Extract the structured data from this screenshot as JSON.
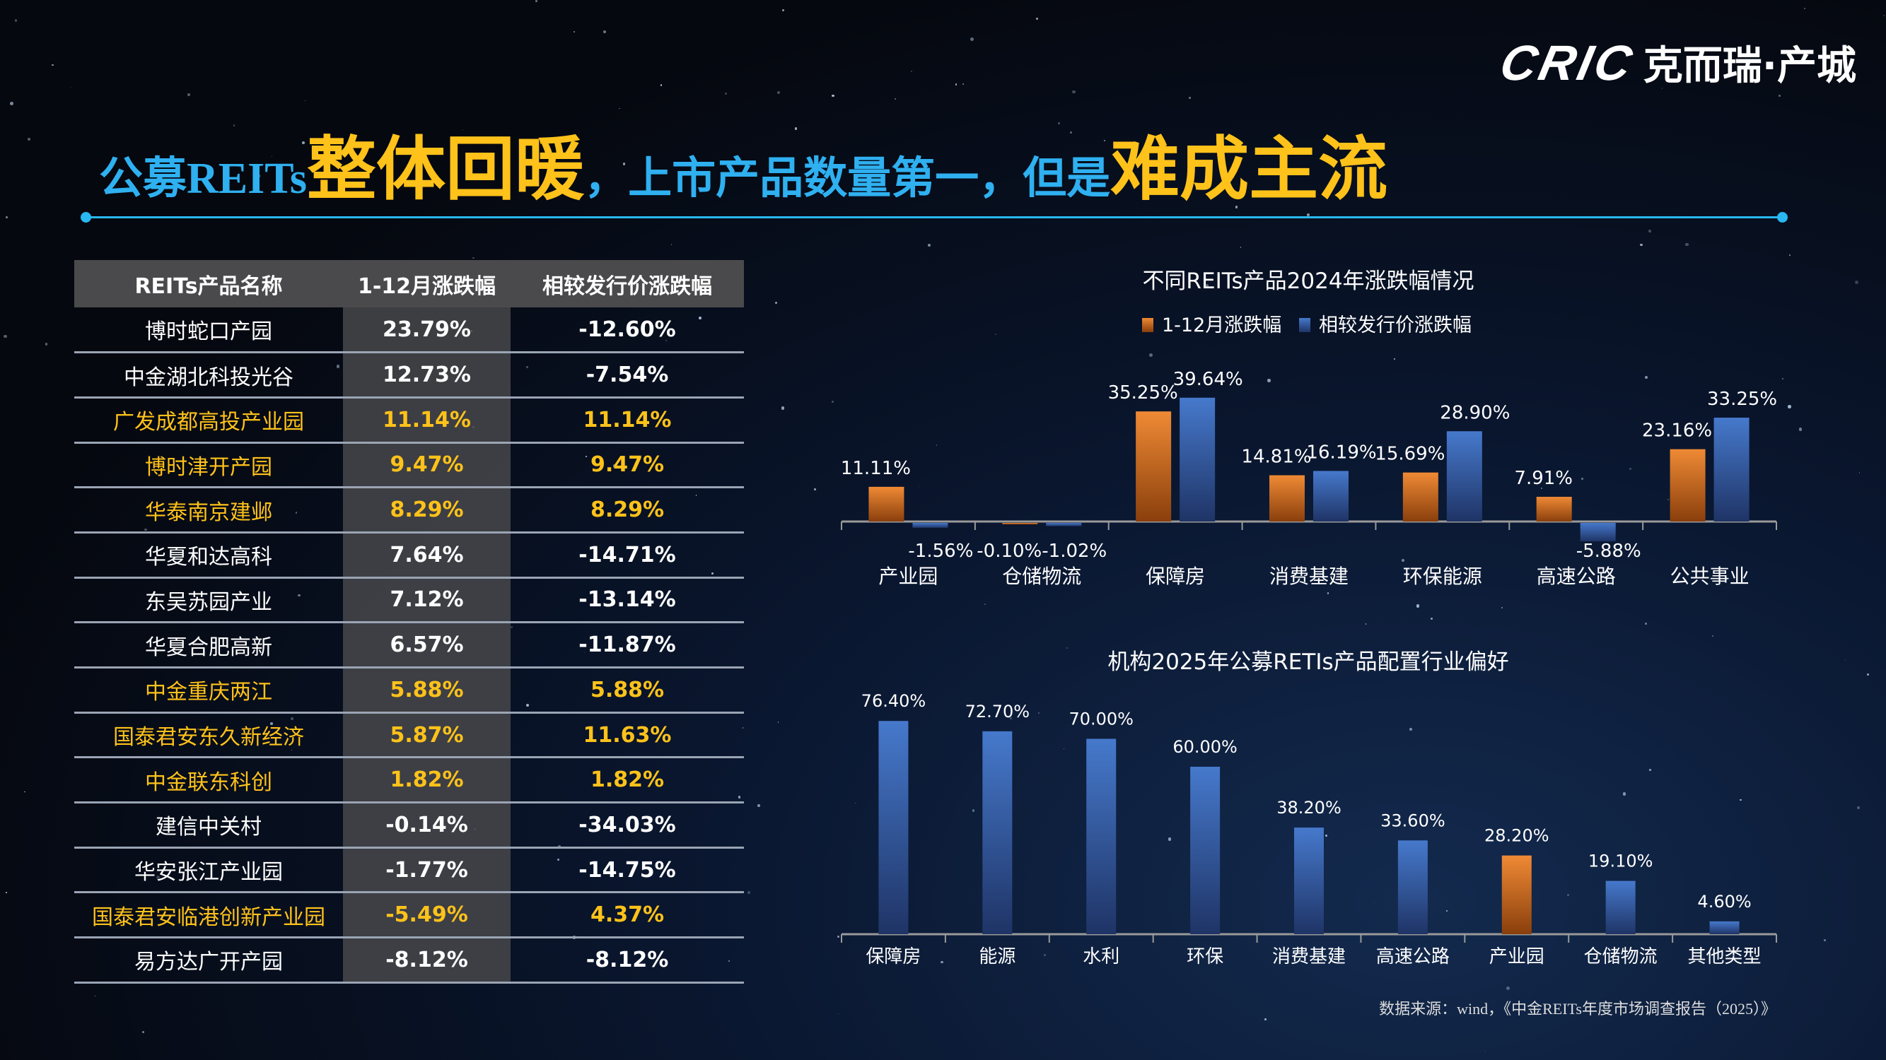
{
  "logo": {
    "mark": "CRIC",
    "name": "克而瑞·产城"
  },
  "title": {
    "part1": "公募REITs",
    "part2": "整体回暖",
    "part3": "，上市产品数量第一，但是",
    "part4": "难成主流"
  },
  "colors": {
    "title_blue": "#2fb0f0",
    "title_yellow": "#ffc21a",
    "orange": "#e07a2a",
    "blue": "#3a6cc0"
  },
  "table": {
    "headers": [
      "REITs产品名称",
      "1-12月涨跌幅",
      "相较发行价涨跌幅"
    ],
    "rows": [
      {
        "name": "博时蛇口产园",
        "ytd": "23.79%",
        "vs_issue": "-12.60%",
        "highlight": false
      },
      {
        "name": "中金湖北科投光谷",
        "ytd": "12.73%",
        "vs_issue": "-7.54%",
        "highlight": false
      },
      {
        "name": "广发成都高投产业园",
        "ytd": "11.14%",
        "vs_issue": "11.14%",
        "highlight": true
      },
      {
        "name": "博时津开产园",
        "ytd": "9.47%",
        "vs_issue": "9.47%",
        "highlight": true
      },
      {
        "name": "华泰南京建邺",
        "ytd": "8.29%",
        "vs_issue": "8.29%",
        "highlight": true
      },
      {
        "name": "华夏和达高科",
        "ytd": "7.64%",
        "vs_issue": "-14.71%",
        "highlight": false
      },
      {
        "name": "东吴苏园产业",
        "ytd": "7.12%",
        "vs_issue": "-13.14%",
        "highlight": false
      },
      {
        "name": "华夏合肥高新",
        "ytd": "6.57%",
        "vs_issue": "-11.87%",
        "highlight": false
      },
      {
        "name": "中金重庆两江",
        "ytd": "5.88%",
        "vs_issue": "5.88%",
        "highlight": true
      },
      {
        "name": "国泰君安东久新经济",
        "ytd": "5.87%",
        "vs_issue": "11.63%",
        "highlight": true
      },
      {
        "name": "中金联东科创",
        "ytd": "1.82%",
        "vs_issue": "1.82%",
        "highlight": true
      },
      {
        "name": "建信中关村",
        "ytd": "-0.14%",
        "vs_issue": "-34.03%",
        "highlight": false
      },
      {
        "name": "华安张江产业园",
        "ytd": "-1.77%",
        "vs_issue": "-14.75%",
        "highlight": false
      },
      {
        "name": "国泰君安临港创新产业园",
        "ytd": "-5.49%",
        "vs_issue": "4.37%",
        "highlight": true
      },
      {
        "name": "易方达广开产园",
        "ytd": "-8.12%",
        "vs_issue": "-8.12%",
        "highlight": false
      }
    ]
  },
  "chart_data": [
    {
      "type": "bar",
      "title": "不同REITs产品2024年涨跌幅情况",
      "legend_position": "top",
      "categories": [
        "产业园",
        "仓储物流",
        "保障房",
        "消费基建",
        "环保能源",
        "高速公路",
        "公共事业"
      ],
      "series": [
        {
          "name": "1-12月涨跌幅",
          "color": "#e07a2a",
          "values": [
            11.11,
            -0.1,
            35.25,
            14.81,
            15.69,
            7.91,
            23.16
          ]
        },
        {
          "name": "相较发行价涨跌幅",
          "color": "#3a6cc0",
          "values": [
            -1.56,
            -1.02,
            39.64,
            16.19,
            28.9,
            -5.88,
            33.25
          ]
        }
      ],
      "grid": false
    },
    {
      "type": "bar",
      "title": "机构2025年公募RETIs产品配置行业偏好",
      "categories": [
        "保障房",
        "能源",
        "水利",
        "环保",
        "消费基建",
        "高速公路",
        "产业园",
        "仓储物流",
        "其他类型"
      ],
      "values": [
        76.4,
        72.7,
        70.0,
        60.0,
        38.2,
        33.6,
        28.2,
        19.1,
        4.6
      ],
      "highlight_category": "产业园",
      "grid": false
    }
  ],
  "source": "数据来源：wind，《中金REITs年度市场调查报告（2025）》"
}
